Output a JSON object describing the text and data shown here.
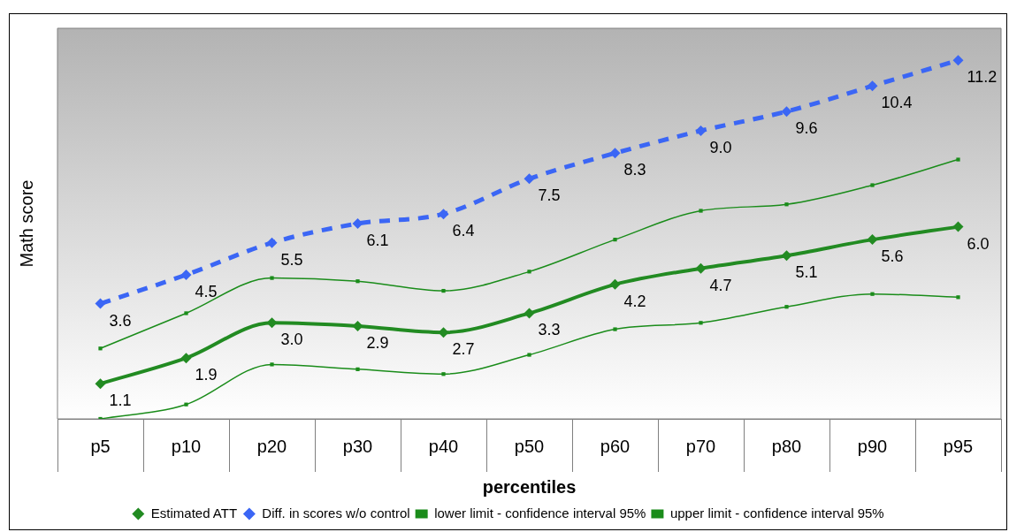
{
  "chart_data": {
    "type": "line",
    "xlabel": "percentiles",
    "ylabel": "Math score",
    "categories": [
      "p5",
      "p10",
      "p20",
      "p30",
      "p40",
      "p50",
      "p60",
      "p70",
      "p80",
      "p90",
      "p95"
    ],
    "ylim": [
      0,
      12.2
    ],
    "legend": "bottom",
    "series": [
      {
        "name": "Estimated ATT",
        "color": "#228b22",
        "marker": "diamond",
        "line_style": "solid",
        "values": [
          1.1,
          1.9,
          3.0,
          2.9,
          2.7,
          3.3,
          4.2,
          4.7,
          5.1,
          5.6,
          6.0
        ],
        "value_labels": [
          "1.1",
          "1.9",
          "3.0",
          "2.9",
          "2.7",
          "3.3",
          "4.2",
          "4.7",
          "5.1",
          "5.6",
          "6.0"
        ]
      },
      {
        "name": "Diff. in scores w/o control",
        "color": "#3b66f5",
        "marker": "diamond",
        "line_style": "dashed",
        "values": [
          3.6,
          4.5,
          5.5,
          6.1,
          6.4,
          7.5,
          8.3,
          9.0,
          9.6,
          10.4,
          11.2
        ],
        "value_labels": [
          "3.6",
          "4.5",
          "5.5",
          "6.1",
          "6.4",
          "7.5",
          "8.3",
          "9.0",
          "9.6",
          "10.4",
          "11.2"
        ]
      },
      {
        "name": "lower limit - confidence interval 95%",
        "color": "#1a8c1a",
        "marker": "square",
        "line_style": "solid",
        "values": [
          0.0,
          0.45,
          1.7,
          1.55,
          1.4,
          2.0,
          2.8,
          3.0,
          3.5,
          3.9,
          3.8
        ]
      },
      {
        "name": "upper limit - confidence interval 95%",
        "color": "#1a8c1a",
        "marker": "square",
        "line_style": "solid",
        "values": [
          2.2,
          3.3,
          4.4,
          4.3,
          4.0,
          4.6,
          5.6,
          6.5,
          6.7,
          7.3,
          8.1
        ]
      }
    ]
  }
}
